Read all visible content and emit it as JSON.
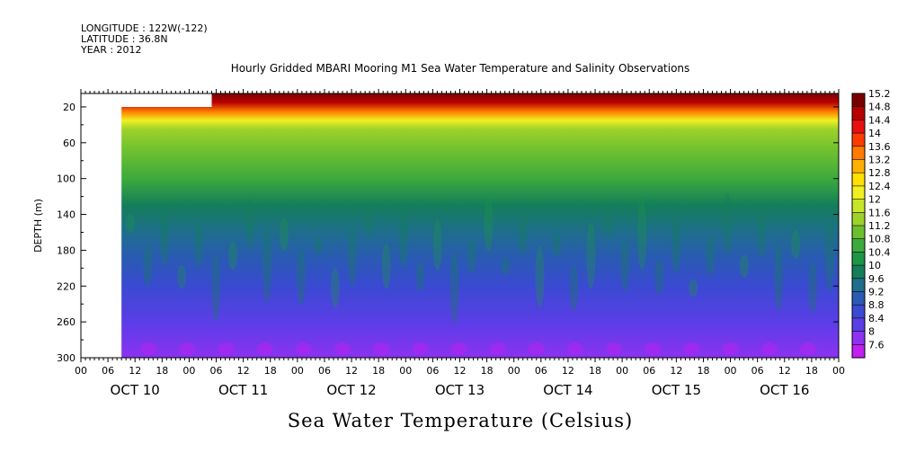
{
  "header": {
    "longitude": "LONGITUDE : 122W(-122)",
    "latitude": "LATITUDE : 36.8N",
    "year": "YEAR : 2012"
  },
  "chart_data": {
    "type": "heatmap",
    "title": "Hourly Gridded MBARI Mooring M1 Sea Water Temperature and Salinity Observations",
    "xlabel": "",
    "ylabel": "DEPTH (m)",
    "colorbar_label": "Sea Water Temperature (Celsius)",
    "x_hours_per_day": [
      "00",
      "06",
      "12",
      "18"
    ],
    "x_end_label": "00",
    "days": [
      "OCT 10",
      "OCT 11",
      "OCT 12",
      "OCT 13",
      "OCT 14",
      "OCT 15",
      "OCT 16"
    ],
    "xlim_hours": [
      0,
      168
    ],
    "y_ticks": [
      20,
      60,
      100,
      140,
      180,
      220,
      260,
      300
    ],
    "ylim": [
      300,
      5
    ],
    "data_start_hour": 9,
    "data_start_depth": 20,
    "full_depth_start_hour": 29,
    "colorbar_levels": [
      "15.2",
      "14.8",
      "14.4",
      "14",
      "13.6",
      "13.2",
      "12.8",
      "12.4",
      "12",
      "11.6",
      "11.2",
      "10.8",
      "10.4",
      "10",
      "9.6",
      "9.2",
      "8.8",
      "8.4",
      "8",
      "7.6"
    ],
    "colorbar_colors": [
      "#7a0000",
      "#b80000",
      "#e61010",
      "#ff3c00",
      "#ff7a00",
      "#ffb000",
      "#ffe000",
      "#f0f020",
      "#c8e628",
      "#9ed22a",
      "#6cc030",
      "#3caa3c",
      "#1e9646",
      "#147e5a",
      "#1e6e8c",
      "#2a5ab4",
      "#3a4ad2",
      "#5a3ee6",
      "#8c32f0",
      "#c020f0"
    ],
    "depth_profile": [
      {
        "depth": 5,
        "temp": 15.0
      },
      {
        "depth": 15,
        "temp": 14.6
      },
      {
        "depth": 25,
        "temp": 13.6
      },
      {
        "depth": 35,
        "temp": 12.4
      },
      {
        "depth": 45,
        "temp": 11.6
      },
      {
        "depth": 70,
        "temp": 11.3
      },
      {
        "depth": 100,
        "temp": 10.8
      },
      {
        "depth": 130,
        "temp": 10.2
      },
      {
        "depth": 160,
        "temp": 9.7
      },
      {
        "depth": 190,
        "temp": 9.2
      },
      {
        "depth": 220,
        "temp": 8.9
      },
      {
        "depth": 260,
        "temp": 8.6
      },
      {
        "depth": 300,
        "temp": 8.1
      }
    ]
  }
}
